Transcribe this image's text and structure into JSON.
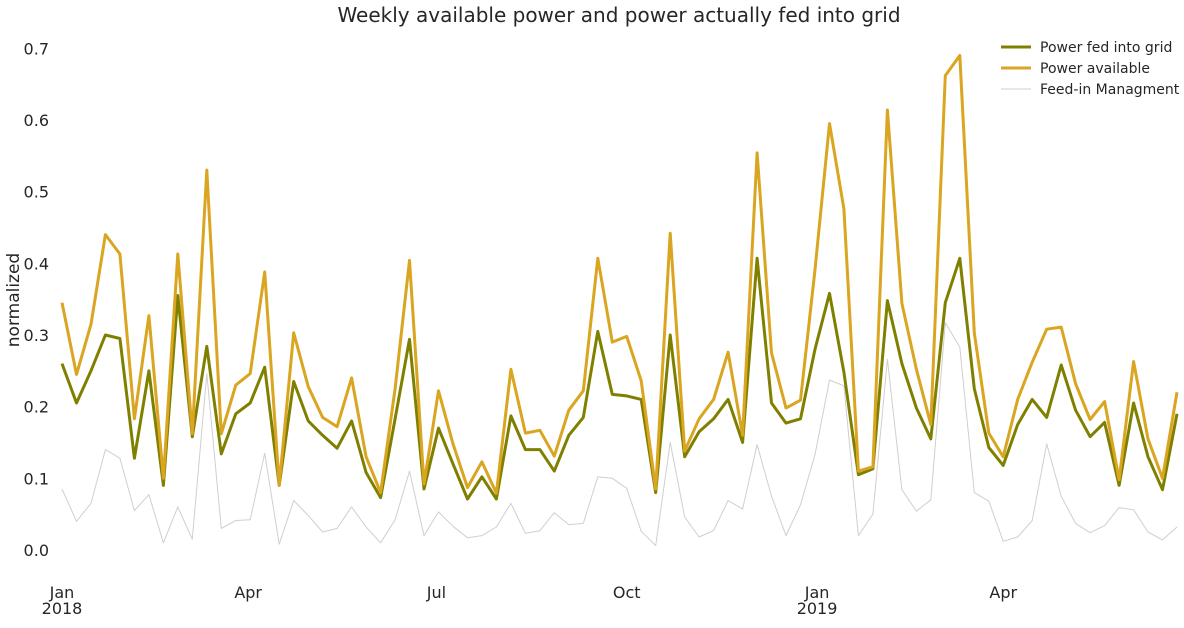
{
  "chart_data": {
    "type": "line",
    "title": "Weekly available power and power actually fed into grid",
    "xlabel": "",
    "ylabel": "normalized",
    "ylim": [
      -0.035,
      0.72
    ],
    "grid": false,
    "legend_position": "top-right",
    "x_start": "2018-01-01",
    "x_end": "2019-06-24",
    "x_step_days": 7,
    "x_ticks": [
      {
        "date": "2018-01-01",
        "label": "Jan",
        "sublabel": "2018"
      },
      {
        "date": "2018-04-01",
        "label": "Apr",
        "sublabel": ""
      },
      {
        "date": "2018-07-01",
        "label": "Jul",
        "sublabel": ""
      },
      {
        "date": "2018-10-01",
        "label": "Oct",
        "sublabel": ""
      },
      {
        "date": "2019-01-01",
        "label": "Jan",
        "sublabel": "2019"
      },
      {
        "date": "2019-04-01",
        "label": "Apr",
        "sublabel": ""
      }
    ],
    "y_ticks": [
      0.0,
      0.1,
      0.2,
      0.3,
      0.4,
      0.5,
      0.6,
      0.7
    ],
    "y_tick_labels": [
      "0.0",
      "0.1",
      "0.2",
      "0.3",
      "0.4",
      "0.5",
      "0.6",
      "0.7"
    ],
    "series": [
      {
        "name": "Power fed into grid",
        "color": "#808000",
        "width": 3,
        "values": [
          0.26,
          0.205,
          0.25,
          0.3,
          0.295,
          0.128,
          0.25,
          0.09,
          0.355,
          0.158,
          0.284,
          0.134,
          0.19,
          0.205,
          0.255,
          0.09,
          0.235,
          0.18,
          0.16,
          0.142,
          0.18,
          0.108,
          0.073,
          0.183,
          0.294,
          0.085,
          0.17,
          0.12,
          0.071,
          0.102,
          0.071,
          0.187,
          0.14,
          0.14,
          0.11,
          0.16,
          0.185,
          0.305,
          0.217,
          0.215,
          0.21,
          0.08,
          0.3,
          0.13,
          0.165,
          0.183,
          0.21,
          0.15,
          0.407,
          0.205,
          0.177,
          0.183,
          0.28,
          0.358,
          0.248,
          0.105,
          0.113,
          0.348,
          0.26,
          0.198,
          0.155,
          0.345,
          0.407,
          0.225,
          0.143,
          0.118,
          0.175,
          0.21,
          0.185,
          0.258,
          0.195,
          0.158,
          0.178,
          0.09,
          0.205,
          0.13,
          0.084,
          0.19
        ]
      },
      {
        "name": "Power available",
        "color": "#DAA520",
        "width": 3,
        "values": [
          0.345,
          0.245,
          0.315,
          0.44,
          0.413,
          0.183,
          0.327,
          0.1,
          0.413,
          0.162,
          0.53,
          0.162,
          0.23,
          0.246,
          0.388,
          0.09,
          0.303,
          0.228,
          0.185,
          0.172,
          0.24,
          0.13,
          0.08,
          0.225,
          0.404,
          0.092,
          0.222,
          0.148,
          0.087,
          0.123,
          0.079,
          0.252,
          0.163,
          0.167,
          0.131,
          0.195,
          0.222,
          0.407,
          0.29,
          0.298,
          0.236,
          0.085,
          0.442,
          0.138,
          0.183,
          0.21,
          0.276,
          0.16,
          0.554,
          0.275,
          0.198,
          0.209,
          0.391,
          0.595,
          0.476,
          0.11,
          0.116,
          0.614,
          0.344,
          0.252,
          0.175,
          0.662,
          0.69,
          0.303,
          0.163,
          0.13,
          0.21,
          0.262,
          0.308,
          0.311,
          0.232,
          0.182,
          0.207,
          0.098,
          0.263,
          0.155,
          0.1,
          0.22
        ]
      },
      {
        "name": "Feed-in Managment",
        "color": "#cfcfcf",
        "width": 1,
        "values": [
          0.085,
          0.04,
          0.065,
          0.14,
          0.128,
          0.055,
          0.077,
          0.01,
          0.06,
          0.015,
          0.246,
          0.03,
          0.041,
          0.042,
          0.135,
          0.008,
          0.069,
          0.048,
          0.025,
          0.03,
          0.06,
          0.032,
          0.01,
          0.042,
          0.11,
          0.02,
          0.053,
          0.033,
          0.017,
          0.02,
          0.032,
          0.065,
          0.023,
          0.027,
          0.052,
          0.035,
          0.037,
          0.102,
          0.1,
          0.086,
          0.026,
          0.006,
          0.15,
          0.046,
          0.018,
          0.027,
          0.069,
          0.057,
          0.147,
          0.075,
          0.02,
          0.063,
          0.133,
          0.237,
          0.229,
          0.02,
          0.05,
          0.266,
          0.084,
          0.054,
          0.07,
          0.317,
          0.283,
          0.08,
          0.068,
          0.012,
          0.018,
          0.041,
          0.148,
          0.075,
          0.037,
          0.024,
          0.034,
          0.059,
          0.056,
          0.025,
          0.014,
          0.032
        ]
      }
    ]
  }
}
